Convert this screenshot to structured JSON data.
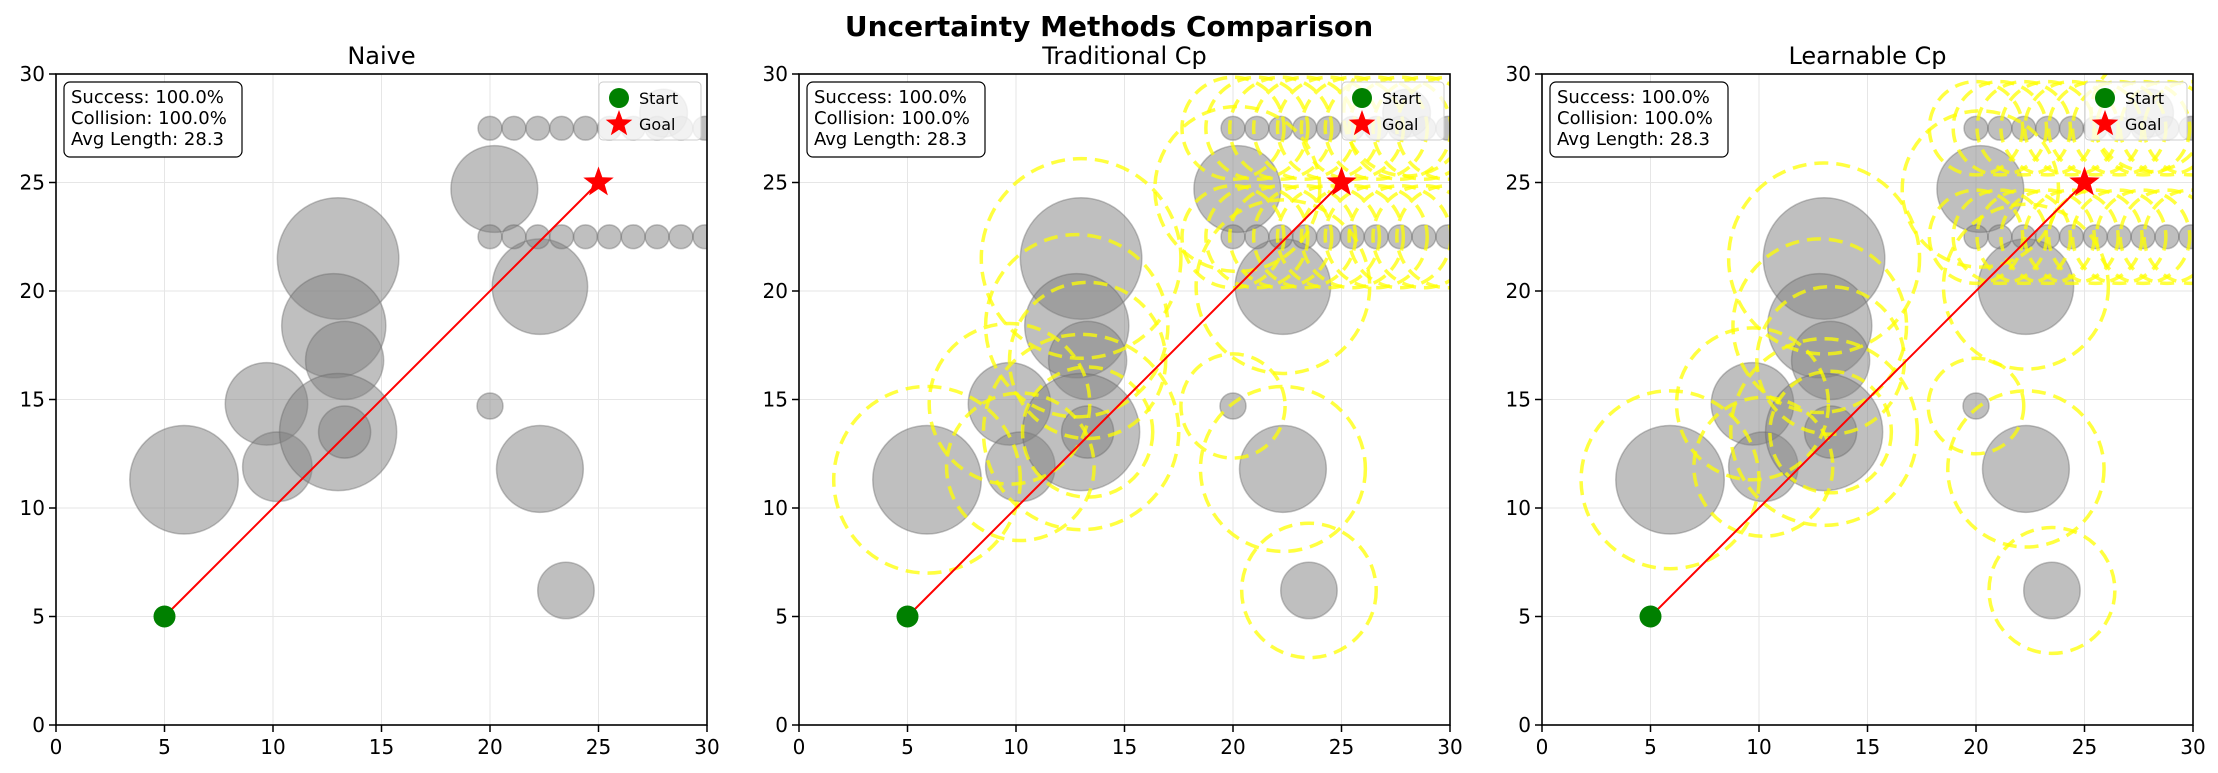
{
  "chart_data": {
    "type": "scatter",
    "title": "Uncertainty Methods Comparison",
    "xlim": [
      0,
      30
    ],
    "ylim": [
      0,
      30
    ],
    "xticks": [
      0,
      5,
      10,
      15,
      20,
      25,
      30
    ],
    "yticks": [
      0,
      5,
      10,
      15,
      20,
      25,
      30
    ],
    "grid": true,
    "legend_position": "top-right",
    "legend": [
      {
        "label": "Start",
        "marker": "circle",
        "color": "#008000"
      },
      {
        "label": "Goal",
        "marker": "star",
        "color": "#ff0000"
      }
    ],
    "start": [
      5,
      5
    ],
    "goal": [
      25,
      25
    ],
    "path": [
      [
        5,
        5
      ],
      [
        25,
        25
      ]
    ],
    "colors": {
      "obstacle": "#808080",
      "path": "#ff0000",
      "start": "#008000",
      "goal": "#ff0000",
      "uncertainty": "#ffff00"
    },
    "obstacles": [
      {
        "x": 5.9,
        "y": 11.3,
        "r": 2.5
      },
      {
        "x": 9.7,
        "y": 14.8,
        "r": 1.9
      },
      {
        "x": 10.2,
        "y": 11.9,
        "r": 1.6
      },
      {
        "x": 13.0,
        "y": 21.5,
        "r": 2.8
      },
      {
        "x": 12.8,
        "y": 18.4,
        "r": 2.4
      },
      {
        "x": 13.3,
        "y": 16.8,
        "r": 1.8
      },
      {
        "x": 13.0,
        "y": 13.5,
        "r": 2.7
      },
      {
        "x": 13.3,
        "y": 13.5,
        "r": 1.2
      },
      {
        "x": 20.2,
        "y": 24.7,
        "r": 2.0
      },
      {
        "x": 22.3,
        "y": 20.2,
        "r": 2.2
      },
      {
        "x": 20.0,
        "y": 14.7,
        "r": 0.6
      },
      {
        "x": 22.3,
        "y": 11.8,
        "r": 2.0
      },
      {
        "x": 23.5,
        "y": 6.2,
        "r": 1.3
      },
      {
        "x": 28.0,
        "y": 28.2,
        "r": 1.1
      },
      {
        "x": 20.0,
        "y": 27.5,
        "r": 0.55
      },
      {
        "x": 21.1,
        "y": 27.5,
        "r": 0.55
      },
      {
        "x": 22.2,
        "y": 27.5,
        "r": 0.55
      },
      {
        "x": 23.3,
        "y": 27.5,
        "r": 0.55
      },
      {
        "x": 24.4,
        "y": 27.5,
        "r": 0.55
      },
      {
        "x": 25.5,
        "y": 27.5,
        "r": 0.55
      },
      {
        "x": 26.6,
        "y": 27.5,
        "r": 0.55
      },
      {
        "x": 27.7,
        "y": 27.5,
        "r": 0.55
      },
      {
        "x": 28.8,
        "y": 27.5,
        "r": 0.55
      },
      {
        "x": 29.9,
        "y": 27.5,
        "r": 0.55
      },
      {
        "x": 20.0,
        "y": 22.5,
        "r": 0.55
      },
      {
        "x": 21.1,
        "y": 22.5,
        "r": 0.55
      },
      {
        "x": 22.2,
        "y": 22.5,
        "r": 0.55
      },
      {
        "x": 23.3,
        "y": 22.5,
        "r": 0.55
      },
      {
        "x": 24.4,
        "y": 22.5,
        "r": 0.55
      },
      {
        "x": 25.5,
        "y": 22.5,
        "r": 0.55
      },
      {
        "x": 26.6,
        "y": 22.5,
        "r": 0.55
      },
      {
        "x": 27.7,
        "y": 22.5,
        "r": 0.55
      },
      {
        "x": 28.8,
        "y": 22.5,
        "r": 0.55
      },
      {
        "x": 29.9,
        "y": 22.5,
        "r": 0.55
      }
    ],
    "panels": [
      {
        "title": "Naive",
        "margin": 0,
        "stats": [
          "Success: 100.0%",
          "Collision: 100.0%",
          "Avg Length: 28.3"
        ]
      },
      {
        "title": "Traditional Cp",
        "margin": 1.8,
        "stats": [
          "Success: 100.0%",
          "Collision: 100.0%",
          "Avg Length: 28.3"
        ]
      },
      {
        "title": "Learnable Cp",
        "margin": 1.6,
        "stats": [
          "Success: 100.0%",
          "Collision: 100.0%",
          "Avg Length: 28.3"
        ]
      }
    ]
  }
}
